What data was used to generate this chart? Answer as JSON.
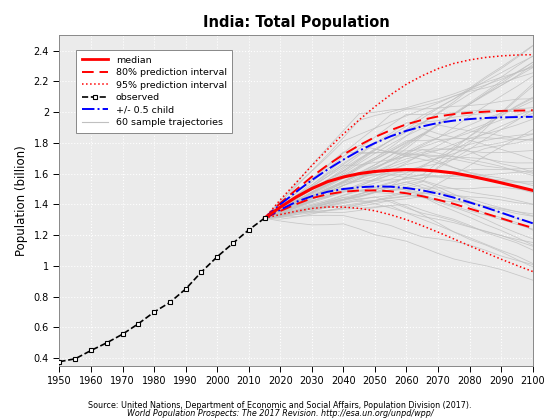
{
  "title": "India: Total Population",
  "ylabel": "Population (billion)",
  "source_line1": "Source: United Nations, Department of Economic and Social Affairs, Population Division (2017).",
  "source_line2": "World Population Prospects: The 2017 Revision. http://esa.un.org/unpd/wpp/",
  "xlim": [
    1950,
    2100
  ],
  "ylim": [
    0.35,
    2.5
  ],
  "yticks": [
    0.4,
    0.6,
    0.8,
    1.0,
    1.2,
    1.4,
    1.6,
    1.8,
    2.0,
    2.2,
    2.4
  ],
  "xticks": [
    1950,
    1960,
    1970,
    1980,
    1990,
    2000,
    2010,
    2020,
    2030,
    2040,
    2050,
    2060,
    2070,
    2080,
    2090,
    2100
  ],
  "observed_years": [
    1950,
    1955,
    1960,
    1965,
    1970,
    1975,
    1980,
    1985,
    1990,
    1995,
    2000,
    2005,
    2010,
    2015
  ],
  "observed_pop": [
    0.376,
    0.395,
    0.449,
    0.499,
    0.555,
    0.623,
    0.699,
    0.762,
    0.849,
    0.96,
    1.059,
    1.147,
    1.234,
    1.31
  ],
  "median_years": [
    2015,
    2020,
    2025,
    2030,
    2035,
    2040,
    2045,
    2050,
    2055,
    2060,
    2065,
    2070,
    2075,
    2080,
    2085,
    2090,
    2095,
    2100
  ],
  "median_pop": [
    1.31,
    1.382,
    1.447,
    1.503,
    1.548,
    1.578,
    1.6,
    1.614,
    1.622,
    1.626,
    1.624,
    1.616,
    1.604,
    1.585,
    1.563,
    1.54,
    1.516,
    1.491
  ],
  "pi80_high_pop": [
    1.31,
    1.408,
    1.495,
    1.58,
    1.656,
    1.724,
    1.784,
    1.838,
    1.883,
    1.921,
    1.95,
    1.972,
    1.987,
    1.996,
    2.003,
    2.008,
    2.01,
    2.012
  ],
  "pi80_low_pop": [
    1.31,
    1.357,
    1.401,
    1.44,
    1.466,
    1.482,
    1.49,
    1.491,
    1.485,
    1.472,
    1.453,
    1.43,
    1.403,
    1.372,
    1.341,
    1.309,
    1.277,
    1.247
  ],
  "pi95_high_pop": [
    1.31,
    1.43,
    1.541,
    1.652,
    1.758,
    1.858,
    1.95,
    2.036,
    2.114,
    2.182,
    2.237,
    2.283,
    2.317,
    2.34,
    2.356,
    2.366,
    2.372,
    2.374
  ],
  "pi95_low_pop": [
    1.31,
    1.334,
    1.355,
    1.373,
    1.383,
    1.382,
    1.374,
    1.358,
    1.332,
    1.3,
    1.261,
    1.219,
    1.175,
    1.13,
    1.086,
    1.043,
    1.002,
    0.963
  ],
  "child05_high_pop": [
    1.31,
    1.4,
    1.481,
    1.558,
    1.627,
    1.691,
    1.749,
    1.799,
    1.843,
    1.879,
    1.907,
    1.93,
    1.945,
    1.955,
    1.962,
    1.966,
    1.968,
    1.97
  ],
  "child05_low_pop": [
    1.31,
    1.365,
    1.416,
    1.453,
    1.482,
    1.5,
    1.511,
    1.517,
    1.515,
    1.506,
    1.491,
    1.47,
    1.444,
    1.413,
    1.38,
    1.346,
    1.311,
    1.277
  ],
  "colors": {
    "median": "#FF0000",
    "pi80": "#FF0000",
    "pi95": "#FF0000",
    "observed": "#000000",
    "child05": "#0000FF",
    "sample": "#C0C0C0",
    "plot_bg": "#EBEBEB",
    "background": "#FFFFFF",
    "grid": "#FFFFFF"
  }
}
